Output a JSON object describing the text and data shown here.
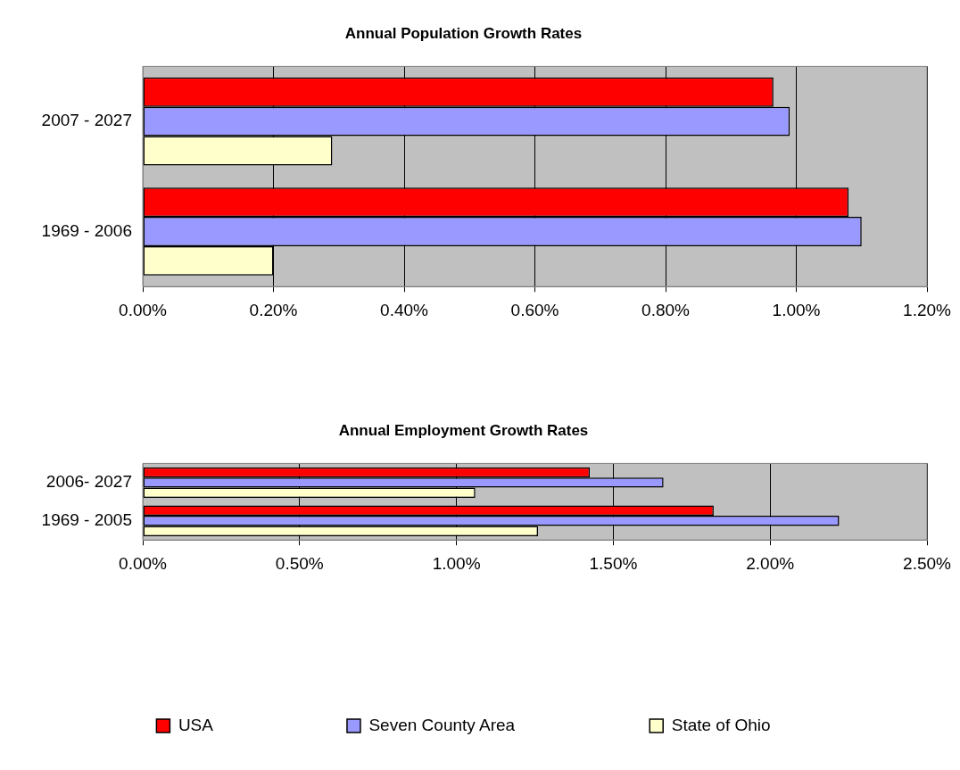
{
  "chart_data": [
    {
      "type": "bar",
      "orientation": "horizontal",
      "title": "Annual Population Growth Rates",
      "categories": [
        "2007 - 2027",
        "1969 - 2006"
      ],
      "series": [
        {
          "color": "#ff0000",
          "values": [
            0.965,
            1.08
          ]
        },
        {
          "color": "#9999ff",
          "values": [
            0.99,
            1.1
          ]
        },
        {
          "color": "#ffffcc",
          "values": [
            0.29,
            0.2
          ]
        }
      ],
      "xlim": [
        0,
        1.2
      ],
      "xticks": [
        {
          "value": 0,
          "label": "0.00%"
        },
        {
          "value": 0.2,
          "label": "0.20%"
        },
        {
          "value": 0.4,
          "label": "0.40%"
        },
        {
          "value": 0.6,
          "label": "0.60%"
        },
        {
          "value": 0.8,
          "label": "0.80%"
        },
        {
          "value": 1,
          "label": "1.00%"
        },
        {
          "value": 1.2,
          "label": "1.20%"
        }
      ],
      "grid": "x",
      "legend": false
    },
    {
      "type": "bar",
      "orientation": "horizontal",
      "title": "Annual Employment Growth Rates",
      "categories": [
        "2006- 2027",
        "1969 - 2005"
      ],
      "series": [
        {
          "name": "USA",
          "color": "#ff0000",
          "values": [
            1.425,
            1.82
          ]
        },
        {
          "name": "Seven County Area",
          "color": "#9999ff",
          "values": [
            1.66,
            2.22
          ]
        },
        {
          "name": "State of Ohio",
          "color": "#ffffcc",
          "values": [
            1.06,
            1.26
          ]
        }
      ],
      "xlim": [
        0,
        2.5
      ],
      "xticks": [
        {
          "value": 0,
          "label": "0.00%"
        },
        {
          "value": 0.5,
          "label": "0.50%"
        },
        {
          "value": 1,
          "label": "1.00%"
        },
        {
          "value": 1.5,
          "label": "1.50%"
        },
        {
          "value": 2,
          "label": "2.00%"
        },
        {
          "value": 2.5,
          "label": "2.50%"
        }
      ],
      "grid": "x",
      "legend": "bottom"
    }
  ]
}
